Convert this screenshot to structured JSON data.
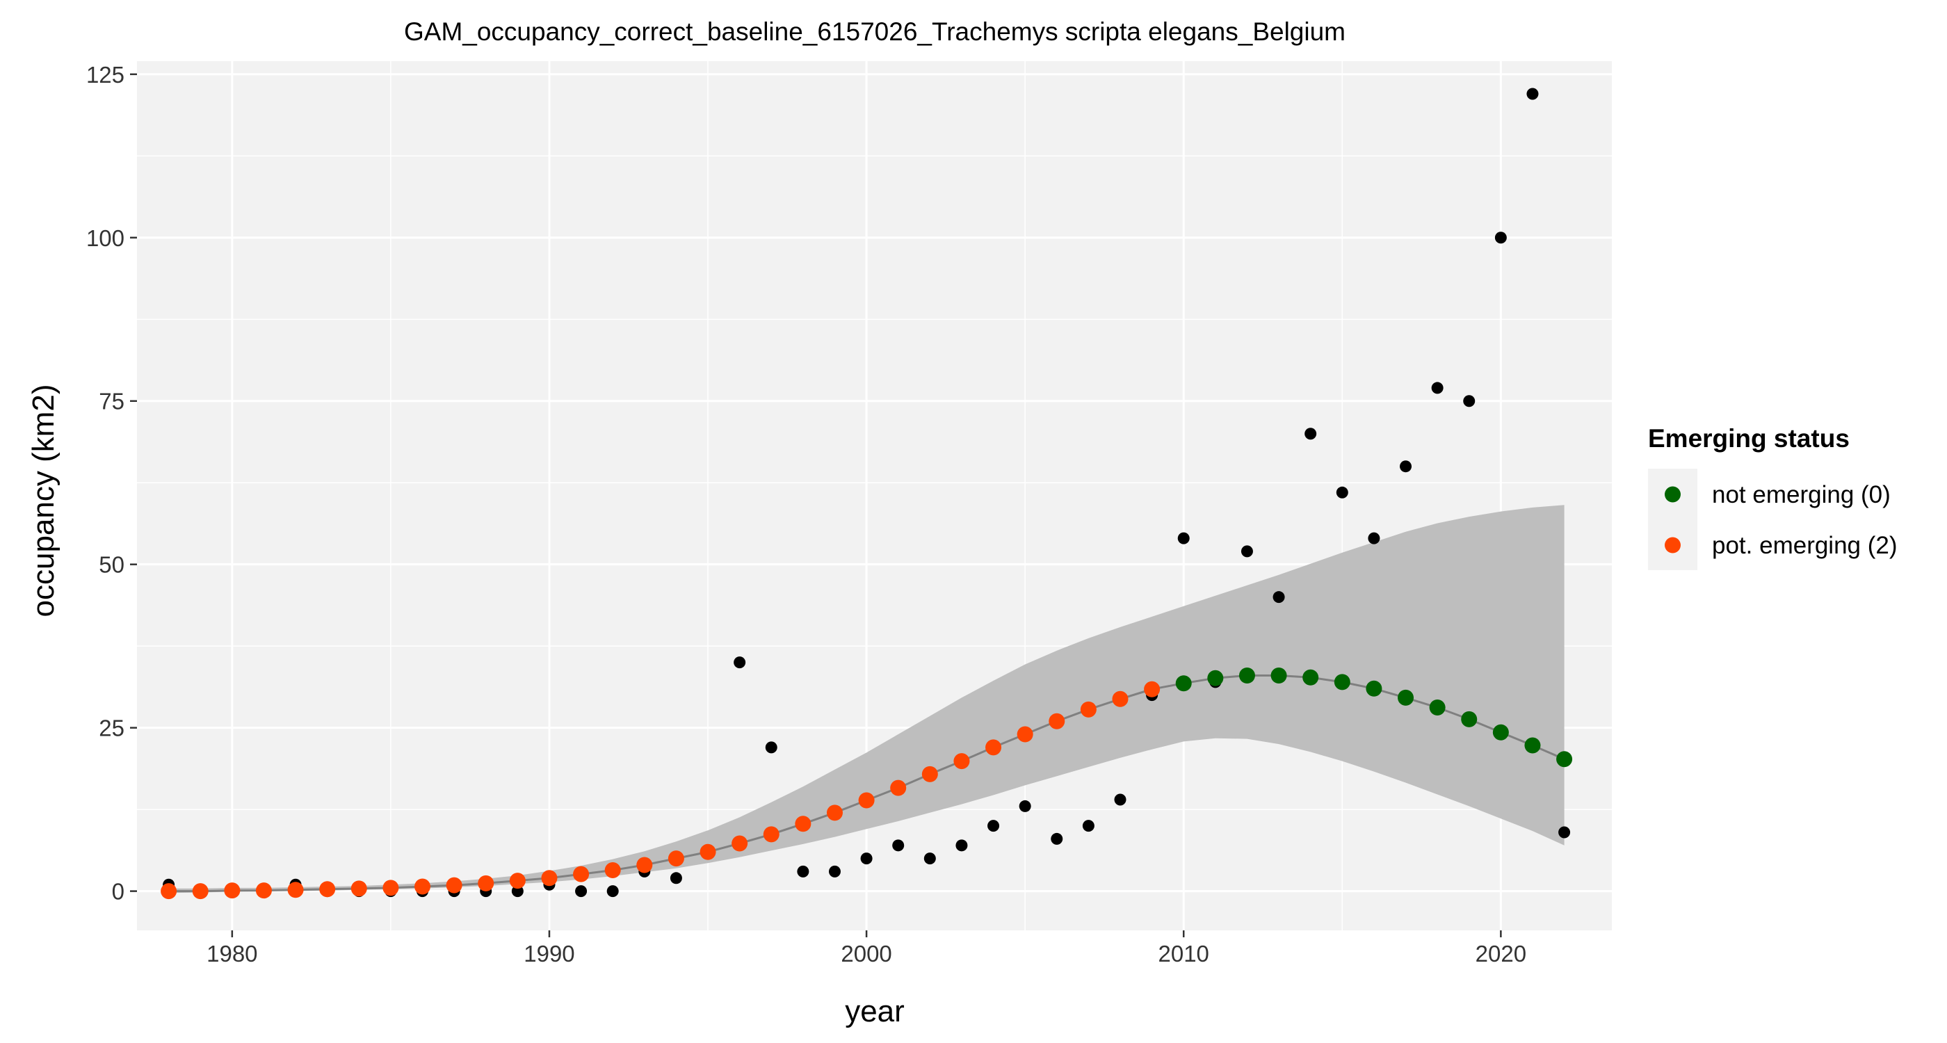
{
  "chart_data": {
    "type": "scatter",
    "title": "GAM_occupancy_correct_baseline_6157026_Trachemys scripta elegans_Belgium",
    "xlabel": "year",
    "ylabel": "occupancy (km2)",
    "xlim": [
      1977,
      2023.5
    ],
    "ylim": [
      -6,
      127
    ],
    "x_ticks": [
      1980,
      1990,
      2000,
      2010,
      2020
    ],
    "y_ticks": [
      0,
      25,
      50,
      75,
      100,
      125
    ],
    "grid": true,
    "background": "#f2f2f2",
    "legend": {
      "title": "Emerging status",
      "position": "right",
      "entries": [
        {
          "label": "not emerging (0)",
          "color": "#006400"
        },
        {
          "label": "pot. emerging (2)",
          "color": "#ff4500"
        }
      ]
    },
    "observed": {
      "color": "#000000",
      "x": [
        1978,
        1979,
        1980,
        1981,
        1982,
        1983,
        1984,
        1985,
        1986,
        1987,
        1988,
        1989,
        1990,
        1991,
        1992,
        1993,
        1994,
        1996,
        1997,
        1998,
        1999,
        2000,
        2001,
        2002,
        2003,
        2004,
        2005,
        2006,
        2007,
        2008,
        2009,
        2010,
        2011,
        2012,
        2013,
        2014,
        2015,
        2016,
        2017,
        2018,
        2019,
        2020,
        2021,
        2022
      ],
      "y": [
        1,
        0,
        0,
        0,
        1,
        0,
        0,
        0,
        0,
        0,
        0,
        0,
        1,
        0,
        0,
        3,
        2,
        35,
        22,
        3,
        3,
        5,
        7,
        5,
        7,
        10,
        13,
        8,
        10,
        14,
        30,
        54,
        32,
        52,
        45,
        70,
        61,
        54,
        65,
        77,
        75,
        100,
        122,
        9
      ]
    },
    "fitted": {
      "line_color": "#808080",
      "x": [
        1978,
        1979,
        1980,
        1981,
        1982,
        1983,
        1984,
        1985,
        1986,
        1987,
        1988,
        1989,
        1990,
        1991,
        1992,
        1993,
        1994,
        1995,
        1996,
        1997,
        1998,
        1999,
        2000,
        2001,
        2002,
        2003,
        2004,
        2005,
        2006,
        2007,
        2008,
        2009,
        2010,
        2011,
        2012,
        2013,
        2014,
        2015,
        2016,
        2017,
        2018,
        2019,
        2020,
        2021,
        2022
      ],
      "y": [
        0,
        0,
        0.1,
        0.1,
        0.2,
        0.3,
        0.4,
        0.5,
        0.7,
        0.9,
        1.2,
        1.6,
        2.0,
        2.6,
        3.2,
        4.0,
        5.0,
        6.0,
        7.3,
        8.7,
        10.3,
        12.0,
        13.9,
        15.8,
        17.9,
        19.9,
        22.0,
        24.0,
        26.0,
        27.8,
        29.4,
        30.9,
        31.8,
        32.6,
        33.0,
        33.0,
        32.7,
        32.0,
        31.0,
        29.6,
        28.1,
        26.3,
        24.3,
        22.3,
        20.2
      ],
      "status": [
        2,
        2,
        2,
        2,
        2,
        2,
        2,
        2,
        2,
        2,
        2,
        2,
        2,
        2,
        2,
        2,
        2,
        2,
        2,
        2,
        2,
        2,
        2,
        2,
        2,
        2,
        2,
        2,
        2,
        2,
        2,
        2,
        0,
        0,
        0,
        0,
        0,
        0,
        0,
        0,
        0,
        0,
        0,
        0,
        0
      ],
      "ci_color": "#bebebe",
      "ci_lower": [
        -0.3,
        -0.2,
        -0.1,
        0,
        0,
        0.1,
        0.2,
        0.3,
        0.4,
        0.6,
        0.8,
        1.1,
        1.4,
        1.8,
        2.3,
        2.9,
        3.5,
        4.3,
        5.2,
        6.2,
        7.2,
        8.3,
        9.5,
        10.7,
        12.0,
        13.3,
        14.7,
        16.2,
        17.6,
        19.0,
        20.4,
        21.7,
        22.9,
        23.4,
        23.3,
        22.5,
        21.3,
        19.9,
        18.3,
        16.6,
        14.8,
        13.0,
        11.1,
        9.2,
        7.0
      ],
      "ci_upper": [
        0.4,
        0.4,
        0.5,
        0.5,
        0.6,
        0.7,
        0.8,
        1.0,
        1.2,
        1.5,
        1.9,
        2.4,
        3.1,
        3.9,
        4.9,
        6.1,
        7.6,
        9.3,
        11.3,
        13.6,
        16.0,
        18.6,
        21.2,
        24.0,
        26.8,
        29.6,
        32.2,
        34.7,
        36.8,
        38.7,
        40.4,
        42.0,
        43.6,
        45.2,
        46.8,
        48.4,
        50.1,
        51.8,
        53.4,
        55.0,
        56.3,
        57.3,
        58.1,
        58.7,
        59.1
      ]
    }
  }
}
